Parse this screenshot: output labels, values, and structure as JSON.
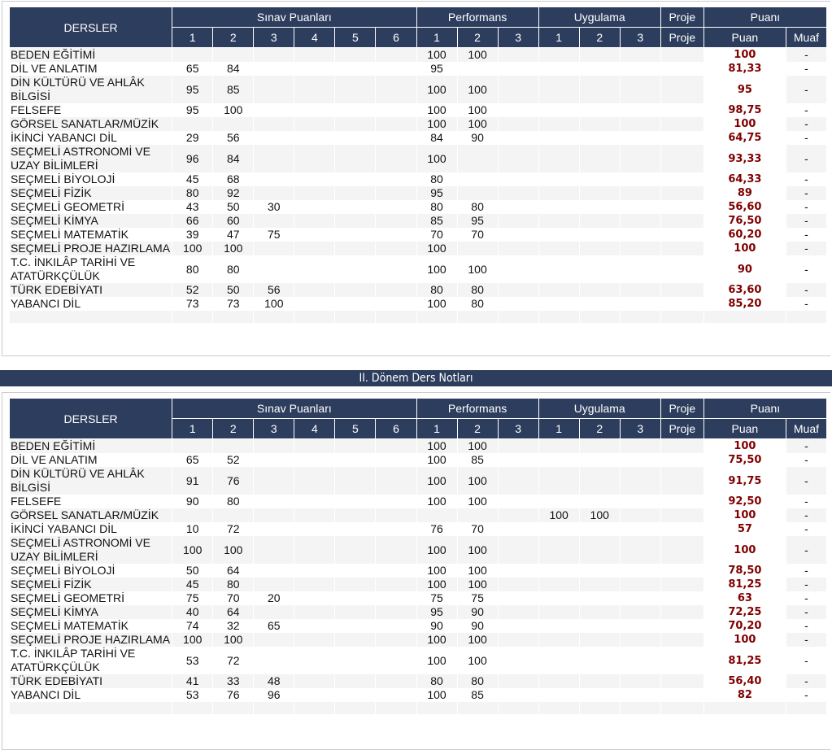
{
  "headers": {
    "dersler": "DERSLER",
    "sinav": "Sınav Puanları",
    "performans": "Performans",
    "uygulama": "Uygulama",
    "proje": "Proje",
    "puani": "Puanı",
    "puan": "Puan",
    "muaf": "Muaf",
    "sinav_cols": [
      "1",
      "2",
      "3",
      "4",
      "5",
      "6"
    ],
    "perf_cols": [
      "1",
      "2",
      "3"
    ],
    "uyg_cols": [
      "1",
      "2",
      "3"
    ],
    "proje_col": "Proje"
  },
  "section2_title": "II. Dönem Ders Notları",
  "colors": {
    "header_bg": "#2d3d5d",
    "puan": "#800000"
  },
  "term1": [
    {
      "name": "BEDEN EĞİTİMİ",
      "s": [
        "",
        "",
        "",
        "",
        "",
        "",
        "100",
        "100",
        "",
        "",
        "",
        "",
        ""
      ],
      "puan": "100",
      "muaf": "-"
    },
    {
      "name": "DİL VE ANLATIM",
      "s": [
        "65",
        "84",
        "",
        "",
        "",
        "",
        "95",
        "",
        "",
        "",
        "",
        "",
        ""
      ],
      "puan": "81,33",
      "muaf": "-"
    },
    {
      "name": "DİN KÜLTÜRÜ VE AHLÂK BİLGİSİ",
      "s": [
        "95",
        "85",
        "",
        "",
        "",
        "",
        "100",
        "100",
        "",
        "",
        "",
        "",
        ""
      ],
      "puan": "95",
      "muaf": "-"
    },
    {
      "name": "FELSEFE",
      "s": [
        "95",
        "100",
        "",
        "",
        "",
        "",
        "100",
        "100",
        "",
        "",
        "",
        "",
        ""
      ],
      "puan": "98,75",
      "muaf": "-"
    },
    {
      "name": "GÖRSEL SANATLAR/MÜZİK",
      "s": [
        "",
        "",
        "",
        "",
        "",
        "",
        "100",
        "100",
        "",
        "",
        "",
        "",
        ""
      ],
      "puan": "100",
      "muaf": "-"
    },
    {
      "name": "İKİNCİ YABANCI DİL",
      "s": [
        "29",
        "56",
        "",
        "",
        "",
        "",
        "84",
        "90",
        "",
        "",
        "",
        "",
        ""
      ],
      "puan": "64,75",
      "muaf": "-"
    },
    {
      "name": "SEÇMELİ ASTRONOMİ VE UZAY BİLİMLERİ",
      "s": [
        "96",
        "84",
        "",
        "",
        "",
        "",
        "100",
        "",
        "",
        "",
        "",
        "",
        ""
      ],
      "puan": "93,33",
      "muaf": "-"
    },
    {
      "name": "SEÇMELİ BİYOLOJİ",
      "s": [
        "45",
        "68",
        "",
        "",
        "",
        "",
        "80",
        "",
        "",
        "",
        "",
        "",
        ""
      ],
      "puan": "64,33",
      "muaf": "-"
    },
    {
      "name": "SEÇMELİ FİZİK",
      "s": [
        "80",
        "92",
        "",
        "",
        "",
        "",
        "95",
        "",
        "",
        "",
        "",
        "",
        ""
      ],
      "puan": "89",
      "muaf": "-"
    },
    {
      "name": "SEÇMELİ GEOMETRİ",
      "s": [
        "43",
        "50",
        "30",
        "",
        "",
        "",
        "80",
        "80",
        "",
        "",
        "",
        "",
        ""
      ],
      "puan": "56,60",
      "muaf": "-"
    },
    {
      "name": "SEÇMELİ KİMYA",
      "s": [
        "66",
        "60",
        "",
        "",
        "",
        "",
        "85",
        "95",
        "",
        "",
        "",
        "",
        ""
      ],
      "puan": "76,50",
      "muaf": "-"
    },
    {
      "name": "SEÇMELİ MATEMATİK",
      "s": [
        "39",
        "47",
        "75",
        "",
        "",
        "",
        "70",
        "70",
        "",
        "",
        "",
        "",
        ""
      ],
      "puan": "60,20",
      "muaf": "-"
    },
    {
      "name": "SEÇMELİ PROJE HAZIRLAMA",
      "s": [
        "100",
        "100",
        "",
        "",
        "",
        "",
        "100",
        "",
        "",
        "",
        "",
        "",
        ""
      ],
      "puan": "100",
      "muaf": "-"
    },
    {
      "name": "T.C. İNKILÂP TARİHİ VE ATATÜRKÇÜLÜK",
      "s": [
        "80",
        "80",
        "",
        "",
        "",
        "",
        "100",
        "100",
        "",
        "",
        "",
        "",
        ""
      ],
      "puan": "90",
      "muaf": "-"
    },
    {
      "name": "TÜRK EDEBİYATI",
      "s": [
        "52",
        "50",
        "56",
        "",
        "",
        "",
        "80",
        "80",
        "",
        "",
        "",
        "",
        ""
      ],
      "puan": "63,60",
      "muaf": "-"
    },
    {
      "name": "YABANCI DİL",
      "s": [
        "73",
        "73",
        "100",
        "",
        "",
        "",
        "100",
        "80",
        "",
        "",
        "",
        "",
        ""
      ],
      "puan": "85,20",
      "muaf": "-"
    }
  ],
  "term2": [
    {
      "name": "BEDEN EĞİTİMİ",
      "s": [
        "",
        "",
        "",
        "",
        "",
        "",
        "100",
        "100",
        "",
        "",
        "",
        "",
        ""
      ],
      "puan": "100",
      "muaf": "-"
    },
    {
      "name": "DİL VE ANLATIM",
      "s": [
        "65",
        "52",
        "",
        "",
        "",
        "",
        "100",
        "85",
        "",
        "",
        "",
        "",
        ""
      ],
      "puan": "75,50",
      "muaf": "-"
    },
    {
      "name": "DİN KÜLTÜRÜ VE AHLÂK BİLGİSİ",
      "s": [
        "91",
        "76",
        "",
        "",
        "",
        "",
        "100",
        "100",
        "",
        "",
        "",
        "",
        ""
      ],
      "puan": "91,75",
      "muaf": "-"
    },
    {
      "name": "FELSEFE",
      "s": [
        "90",
        "80",
        "",
        "",
        "",
        "",
        "100",
        "100",
        "",
        "",
        "",
        "",
        ""
      ],
      "puan": "92,50",
      "muaf": "-"
    },
    {
      "name": "GÖRSEL SANATLAR/MÜZİK",
      "s": [
        "",
        "",
        "",
        "",
        "",
        "",
        "",
        "",
        "",
        "100",
        "100",
        "",
        ""
      ],
      "puan": "100",
      "muaf": "-"
    },
    {
      "name": "İKİNCİ YABANCI DİL",
      "s": [
        "10",
        "72",
        "",
        "",
        "",
        "",
        "76",
        "70",
        "",
        "",
        "",
        "",
        ""
      ],
      "puan": "57",
      "muaf": "-"
    },
    {
      "name": "SEÇMELİ ASTRONOMİ VE UZAY BİLİMLERİ",
      "s": [
        "100",
        "100",
        "",
        "",
        "",
        "",
        "100",
        "100",
        "",
        "",
        "",
        "",
        ""
      ],
      "puan": "100",
      "muaf": "-"
    },
    {
      "name": "SEÇMELİ BİYOLOJİ",
      "s": [
        "50",
        "64",
        "",
        "",
        "",
        "",
        "100",
        "100",
        "",
        "",
        "",
        "",
        ""
      ],
      "puan": "78,50",
      "muaf": "-"
    },
    {
      "name": "SEÇMELİ FİZİK",
      "s": [
        "45",
        "80",
        "",
        "",
        "",
        "",
        "100",
        "100",
        "",
        "",
        "",
        "",
        ""
      ],
      "puan": "81,25",
      "muaf": "-"
    },
    {
      "name": "SEÇMELİ GEOMETRİ",
      "s": [
        "75",
        "70",
        "20",
        "",
        "",
        "",
        "75",
        "75",
        "",
        "",
        "",
        "",
        ""
      ],
      "puan": "63",
      "muaf": "-"
    },
    {
      "name": "SEÇMELİ KİMYA",
      "s": [
        "40",
        "64",
        "",
        "",
        "",
        "",
        "95",
        "90",
        "",
        "",
        "",
        "",
        ""
      ],
      "puan": "72,25",
      "muaf": "-"
    },
    {
      "name": "SEÇMELİ MATEMATİK",
      "s": [
        "74",
        "32",
        "65",
        "",
        "",
        "",
        "90",
        "90",
        "",
        "",
        "",
        "",
        ""
      ],
      "puan": "70,20",
      "muaf": "-"
    },
    {
      "name": "SEÇMELİ PROJE HAZIRLAMA",
      "s": [
        "100",
        "100",
        "",
        "",
        "",
        "",
        "100",
        "100",
        "",
        "",
        "",
        "",
        ""
      ],
      "puan": "100",
      "muaf": "-"
    },
    {
      "name": "T.C. İNKILÂP TARİHİ VE ATATÜRKÇÜLÜK",
      "s": [
        "53",
        "72",
        "",
        "",
        "",
        "",
        "100",
        "100",
        "",
        "",
        "",
        "",
        ""
      ],
      "puan": "81,25",
      "muaf": "-"
    },
    {
      "name": "TÜRK EDEBİYATI",
      "s": [
        "41",
        "33",
        "48",
        "",
        "",
        "",
        "80",
        "80",
        "",
        "",
        "",
        "",
        ""
      ],
      "puan": "56,40",
      "muaf": "-"
    },
    {
      "name": "YABANCI DİL",
      "s": [
        "53",
        "76",
        "96",
        "",
        "",
        "",
        "100",
        "85",
        "",
        "",
        "",
        "",
        ""
      ],
      "puan": "82",
      "muaf": "-"
    }
  ]
}
